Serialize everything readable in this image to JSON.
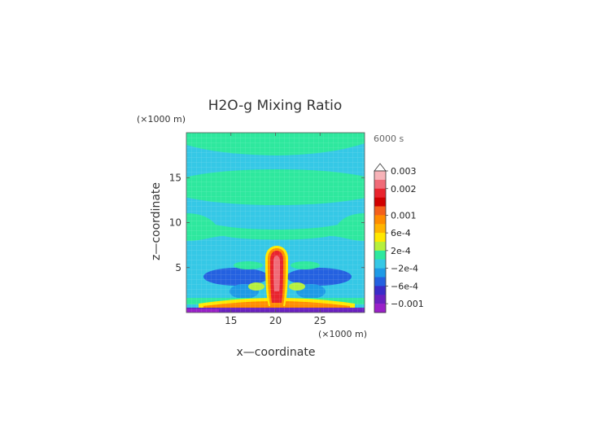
{
  "chart_data": {
    "type": "heatmap",
    "title": "H2O-g Mixing Ratio",
    "time_label": "6000 s",
    "xlabel": "x—coordinate",
    "ylabel": "z—coordinate",
    "x_unit": "(×1000 m)",
    "y_unit": "(×1000 m)",
    "xlim": [
      10,
      30
    ],
    "ylim": [
      0,
      20
    ],
    "x_ticks": [
      15,
      20,
      25
    ],
    "y_ticks": [
      5,
      10,
      15
    ],
    "grid": true,
    "colorbar": {
      "placement": "right",
      "overflow_arrow": "top",
      "levels": [
        {
          "upper": "0.003",
          "color": "#f7b3b8"
        },
        {
          "upper": "",
          "color": "#f06b78"
        },
        {
          "upper": "0.002",
          "color": "#e8242e"
        },
        {
          "upper": "",
          "color": "#d00000"
        },
        {
          "upper": "",
          "color": "#f4601c"
        },
        {
          "upper": "0.001",
          "color": "#ff8c00"
        },
        {
          "upper": "",
          "color": "#ffb400"
        },
        {
          "upper": "6e-4",
          "color": "#ffe800"
        },
        {
          "upper": "",
          "color": "#b6f03c"
        },
        {
          "upper": "2e-4",
          "color": "#2ee89e"
        },
        {
          "upper": "",
          "color": "#35c8e6"
        },
        {
          "upper": "−2e-4",
          "color": "#1e9ae6"
        },
        {
          "upper": "",
          "color": "#2461e0"
        },
        {
          "upper": "−6e-4",
          "color": "#3a2cc8"
        },
        {
          "upper": "",
          "color": "#6a20c0"
        },
        {
          "upper": "−0.001",
          "color": "#9a20c8"
        }
      ],
      "labels": [
        "0.003",
        "0.002",
        "0.001",
        "6e-4",
        "2e-4",
        "−2e-4",
        "−6e-4",
        "−0.001"
      ]
    },
    "field_description_colors": {
      "background": "#35c8e6",
      "positive_band": "#2ee89e",
      "core": "#e8242e",
      "negative": "#2461e0",
      "surface_low": "#6a20c0"
    }
  }
}
